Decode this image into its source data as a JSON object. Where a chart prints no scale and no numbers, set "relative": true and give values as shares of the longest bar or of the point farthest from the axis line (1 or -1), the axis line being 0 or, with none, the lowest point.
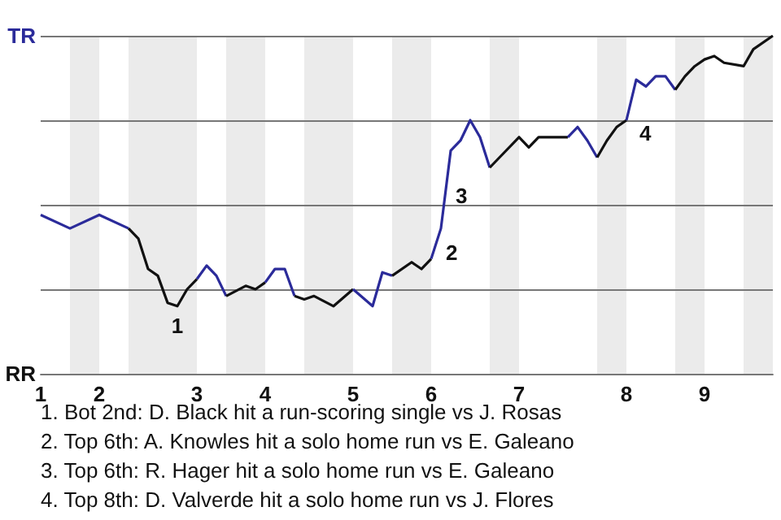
{
  "chart_data": {
    "type": "line",
    "relative": true,
    "categories": [
      "1",
      null,
      null,
      null,
      null,
      null,
      "2",
      null,
      null,
      null,
      null,
      null,
      null,
      null,
      null,
      null,
      "3",
      null,
      null,
      null,
      null,
      null,
      null,
      "4",
      null,
      null,
      null,
      null,
      null,
      null,
      null,
      null,
      "5",
      null,
      null,
      null,
      null,
      null,
      null,
      null,
      "6",
      null,
      null,
      null,
      null,
      null,
      null,
      null,
      null,
      "7",
      null,
      null,
      null,
      null,
      null,
      null,
      null,
      null,
      null,
      null,
      "8",
      null,
      null,
      null,
      null,
      null,
      null,
      null,
      "9",
      null,
      null,
      null,
      null,
      null,
      null,
      null
    ],
    "series": [
      {
        "color": "#2b2b9a",
        "values": [
          0.47,
          null,
          null,
          0.43,
          null,
          null,
          0.47,
          null,
          null,
          0.43,
          null,
          null,
          null,
          null,
          null,
          null,
          null,
          null,
          null,
          null,
          null,
          null,
          null,
          null,
          null,
          null,
          null,
          null,
          null,
          null,
          null,
          null,
          null,
          null,
          null,
          null,
          null,
          null,
          null,
          null,
          null,
          null,
          null,
          null,
          null,
          null,
          null,
          null,
          null,
          null,
          null,
          null,
          null,
          null,
          null,
          null,
          null,
          null,
          null,
          null,
          null,
          null,
          null,
          null,
          null,
          null,
          null,
          null,
          null,
          null,
          null,
          null,
          null,
          null,
          null,
          null
        ]
      },
      {
        "color": "#111111",
        "values": [
          null,
          null,
          null,
          null,
          null,
          null,
          null,
          null,
          null,
          0.43,
          0.4,
          0.31,
          0.29,
          0.21,
          0.2,
          0.25,
          0.28,
          null,
          null,
          null,
          null,
          null,
          null,
          null,
          null,
          null,
          null,
          null,
          null,
          null,
          null,
          null,
          null,
          null,
          null,
          null,
          null,
          null,
          null,
          null,
          null,
          null,
          null,
          null,
          null,
          null,
          null,
          null,
          null,
          null,
          null,
          null,
          null,
          null,
          null,
          null,
          null,
          null,
          null,
          null,
          null,
          null,
          null,
          null,
          null,
          null,
          null,
          null,
          null,
          null,
          null,
          null,
          null,
          null,
          null,
          null
        ]
      },
      {
        "color": "#2b2b9a",
        "values": [
          null,
          null,
          null,
          null,
          null,
          null,
          null,
          null,
          null,
          null,
          null,
          null,
          null,
          null,
          null,
          null,
          0.28,
          0.32,
          0.29,
          0.23,
          null,
          null,
          null,
          null,
          null,
          null,
          null,
          null,
          null,
          null,
          null,
          null,
          null,
          null,
          null,
          null,
          null,
          null,
          null,
          null,
          null,
          null,
          null,
          null,
          null,
          null,
          null,
          null,
          null,
          null,
          null,
          null,
          null,
          null,
          null,
          null,
          null,
          null,
          null,
          null,
          null,
          null,
          null,
          null,
          null,
          null,
          null,
          null,
          null,
          null,
          null,
          null,
          null,
          null,
          null,
          null
        ]
      },
      {
        "color": "#111111",
        "values": [
          null,
          null,
          null,
          null,
          null,
          null,
          null,
          null,
          null,
          null,
          null,
          null,
          null,
          null,
          null,
          null,
          null,
          null,
          null,
          0.23,
          null,
          0.26,
          0.25,
          0.27,
          null,
          null,
          null,
          null,
          null,
          null,
          null,
          null,
          null,
          null,
          null,
          null,
          null,
          null,
          null,
          null,
          null,
          null,
          null,
          null,
          null,
          null,
          null,
          null,
          null,
          null,
          null,
          null,
          null,
          null,
          null,
          null,
          null,
          null,
          null,
          null,
          null,
          null,
          null,
          null,
          null,
          null,
          null,
          null,
          null,
          null,
          null,
          null,
          null,
          null,
          null,
          null
        ]
      },
      {
        "color": "#2b2b9a",
        "values": [
          null,
          null,
          null,
          null,
          null,
          null,
          null,
          null,
          null,
          null,
          null,
          null,
          null,
          null,
          null,
          null,
          null,
          null,
          null,
          null,
          null,
          null,
          null,
          0.27,
          0.31,
          0.31,
          0.23,
          null,
          null,
          null,
          null,
          null,
          null,
          null,
          null,
          null,
          null,
          null,
          null,
          null,
          null,
          null,
          null,
          null,
          null,
          null,
          null,
          null,
          null,
          null,
          null,
          null,
          null,
          null,
          null,
          null,
          null,
          null,
          null,
          null,
          null,
          null,
          null,
          null,
          null,
          null,
          null,
          null,
          null,
          null,
          null,
          null,
          null,
          null,
          null,
          null
        ]
      },
      {
        "color": "#111111",
        "values": [
          null,
          null,
          null,
          null,
          null,
          null,
          null,
          null,
          null,
          null,
          null,
          null,
          null,
          null,
          null,
          null,
          null,
          null,
          null,
          null,
          null,
          null,
          null,
          null,
          null,
          null,
          0.23,
          0.22,
          0.23,
          null,
          0.2,
          null,
          0.25,
          null,
          null,
          null,
          null,
          null,
          null,
          null,
          null,
          null,
          null,
          null,
          null,
          null,
          null,
          null,
          null,
          null,
          null,
          null,
          null,
          null,
          null,
          null,
          null,
          null,
          null,
          null,
          null,
          null,
          null,
          null,
          null,
          null,
          null,
          null,
          null,
          null,
          null,
          null,
          null,
          null,
          null,
          null
        ]
      },
      {
        "color": "#2b2b9a",
        "values": [
          null,
          null,
          null,
          null,
          null,
          null,
          null,
          null,
          null,
          null,
          null,
          null,
          null,
          null,
          null,
          null,
          null,
          null,
          null,
          null,
          null,
          null,
          null,
          null,
          null,
          null,
          null,
          null,
          null,
          null,
          null,
          null,
          0.25,
          null,
          0.2,
          0.3,
          0.29,
          null,
          null,
          null,
          null,
          null,
          null,
          null,
          null,
          null,
          null,
          null,
          null,
          null,
          null,
          null,
          null,
          null,
          null,
          null,
          null,
          null,
          null,
          null,
          null,
          null,
          null,
          null,
          null,
          null,
          null,
          null,
          null,
          null,
          null,
          null,
          null,
          null,
          null,
          null
        ]
      },
      {
        "color": "#111111",
        "values": [
          null,
          null,
          null,
          null,
          null,
          null,
          null,
          null,
          null,
          null,
          null,
          null,
          null,
          null,
          null,
          null,
          null,
          null,
          null,
          null,
          null,
          null,
          null,
          null,
          null,
          null,
          null,
          null,
          null,
          null,
          null,
          null,
          null,
          null,
          null,
          null,
          0.29,
          null,
          0.33,
          0.31,
          0.34,
          null,
          null,
          null,
          null,
          null,
          null,
          null,
          null,
          null,
          null,
          null,
          null,
          null,
          null,
          null,
          null,
          null,
          null,
          null,
          null,
          null,
          null,
          null,
          null,
          null,
          null,
          null,
          null,
          null,
          null,
          null,
          null,
          null,
          null,
          null
        ]
      },
      {
        "color": "#2b2b9a",
        "values": [
          null,
          null,
          null,
          null,
          null,
          null,
          null,
          null,
          null,
          null,
          null,
          null,
          null,
          null,
          null,
          null,
          null,
          null,
          null,
          null,
          null,
          null,
          null,
          null,
          null,
          null,
          null,
          null,
          null,
          null,
          null,
          null,
          null,
          null,
          null,
          null,
          null,
          null,
          null,
          null,
          0.34,
          0.43,
          0.66,
          0.69,
          0.75,
          0.7,
          0.61,
          null,
          null,
          null,
          null,
          null,
          null,
          null,
          null,
          null,
          null,
          null,
          null,
          null,
          null,
          null,
          null,
          null,
          null,
          null,
          null,
          null,
          null,
          null,
          null,
          null,
          null,
          null,
          null,
          null
        ]
      },
      {
        "color": "#111111",
        "values": [
          null,
          null,
          null,
          null,
          null,
          null,
          null,
          null,
          null,
          null,
          null,
          null,
          null,
          null,
          null,
          null,
          null,
          null,
          null,
          null,
          null,
          null,
          null,
          null,
          null,
          null,
          null,
          null,
          null,
          null,
          null,
          null,
          null,
          null,
          null,
          null,
          null,
          null,
          null,
          null,
          null,
          null,
          null,
          null,
          null,
          null,
          0.61,
          0.64,
          null,
          0.7,
          0.67,
          0.7,
          null,
          null,
          0.7,
          null,
          null,
          null,
          null,
          null,
          null,
          null,
          null,
          null,
          null,
          null,
          null,
          null,
          null,
          null,
          null,
          null,
          null,
          null,
          null,
          null
        ]
      },
      {
        "color": "#2b2b9a",
        "values": [
          null,
          null,
          null,
          null,
          null,
          null,
          null,
          null,
          null,
          null,
          null,
          null,
          null,
          null,
          null,
          null,
          null,
          null,
          null,
          null,
          null,
          null,
          null,
          null,
          null,
          null,
          null,
          null,
          null,
          null,
          null,
          null,
          null,
          null,
          null,
          null,
          null,
          null,
          null,
          null,
          null,
          null,
          null,
          null,
          null,
          null,
          null,
          null,
          null,
          null,
          null,
          null,
          null,
          null,
          0.7,
          0.73,
          0.69,
          0.64,
          null,
          null,
          null,
          null,
          null,
          null,
          null,
          null,
          null,
          null,
          null,
          null,
          null,
          null,
          null,
          null,
          null,
          null
        ]
      },
      {
        "color": "#111111",
        "values": [
          null,
          null,
          null,
          null,
          null,
          null,
          null,
          null,
          null,
          null,
          null,
          null,
          null,
          null,
          null,
          null,
          null,
          null,
          null,
          null,
          null,
          null,
          null,
          null,
          null,
          null,
          null,
          null,
          null,
          null,
          null,
          null,
          null,
          null,
          null,
          null,
          null,
          null,
          null,
          null,
          null,
          null,
          null,
          null,
          null,
          null,
          null,
          null,
          null,
          null,
          null,
          null,
          null,
          null,
          null,
          null,
          null,
          0.64,
          0.69,
          0.73,
          0.75,
          null,
          null,
          null,
          null,
          null,
          null,
          null,
          null,
          null,
          null,
          null,
          null,
          null,
          null,
          null
        ]
      },
      {
        "color": "#2b2b9a",
        "values": [
          null,
          null,
          null,
          null,
          null,
          null,
          null,
          null,
          null,
          null,
          null,
          null,
          null,
          null,
          null,
          null,
          null,
          null,
          null,
          null,
          null,
          null,
          null,
          null,
          null,
          null,
          null,
          null,
          null,
          null,
          null,
          null,
          null,
          null,
          null,
          null,
          null,
          null,
          null,
          null,
          null,
          null,
          null,
          null,
          null,
          null,
          null,
          null,
          null,
          null,
          null,
          null,
          null,
          null,
          null,
          null,
          null,
          null,
          null,
          null,
          0.75,
          0.87,
          0.85,
          0.88,
          0.88,
          0.84,
          null,
          null,
          null,
          null,
          null,
          null,
          null,
          null,
          null,
          null
        ]
      },
      {
        "color": "#111111",
        "values": [
          null,
          null,
          null,
          null,
          null,
          null,
          null,
          null,
          null,
          null,
          null,
          null,
          null,
          null,
          null,
          null,
          null,
          null,
          null,
          null,
          null,
          null,
          null,
          null,
          null,
          null,
          null,
          null,
          null,
          null,
          null,
          null,
          null,
          null,
          null,
          null,
          null,
          null,
          null,
          null,
          null,
          null,
          null,
          null,
          null,
          null,
          null,
          null,
          null,
          null,
          null,
          null,
          null,
          null,
          null,
          null,
          null,
          null,
          null,
          null,
          null,
          null,
          null,
          null,
          null,
          0.84,
          0.88,
          0.91,
          0.93,
          0.94,
          0.92,
          null,
          0.91,
          0.96,
          null,
          1
        ]
      }
    ],
    "marker": "none",
    "ref_lines": [
      {
        "axis": "y",
        "value": 1,
        "label": "TR",
        "color": "#777777"
      },
      {
        "axis": "y",
        "value": 0.75,
        "color": "#777777"
      },
      {
        "axis": "y",
        "value": 0.5,
        "color": "#777777"
      },
      {
        "axis": "y",
        "value": 0.25,
        "color": "#777777"
      },
      {
        "axis": "y",
        "value": 0,
        "label": "RR",
        "color": "#777777"
      }
    ],
    "annotations": [
      "1",
      "2",
      "3",
      "4",
      "1. Bot 2nd: D. Black hit a run-scoring single vs J. Rosas",
      "2. Top 6th: A. Knowles hit a solo home run vs E. Galeano",
      "3. Top 6th: R. Hager hit a solo home run vs E. Galeano",
      "4. Top 8th: D. Valverde hit a solo home run vs J. Flores"
    ]
  }
}
